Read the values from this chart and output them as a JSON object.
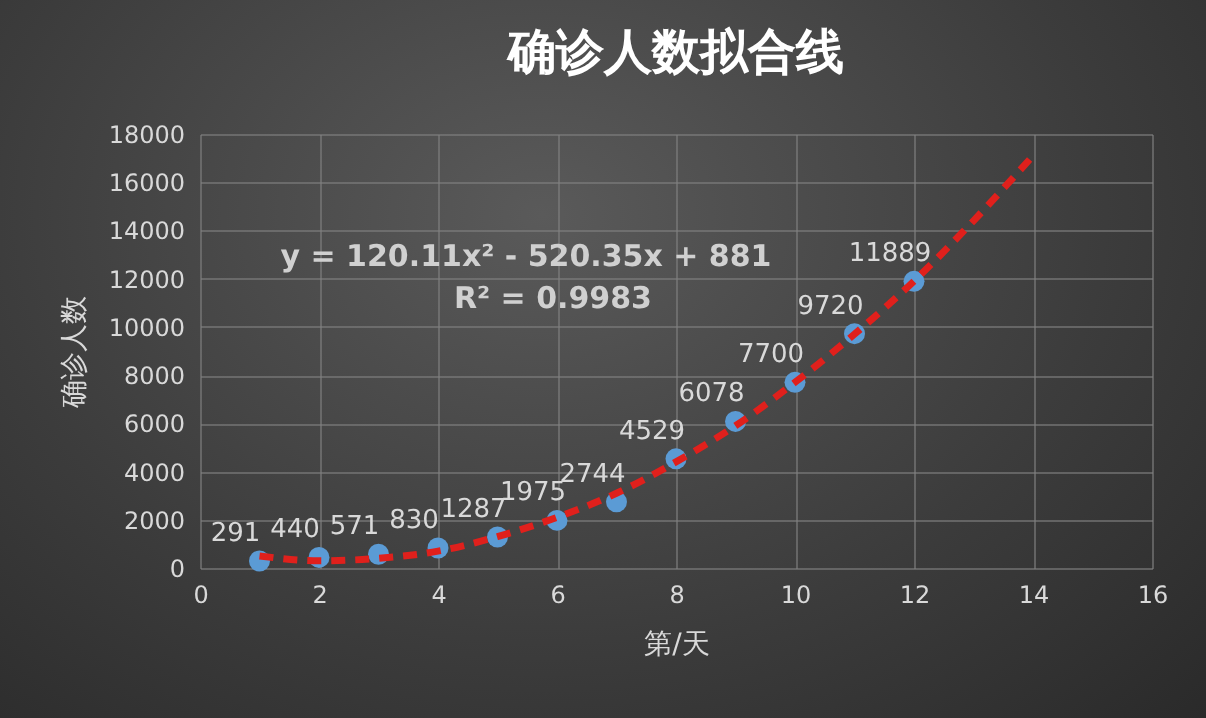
{
  "chart_data": {
    "type": "scatter",
    "title": "确诊人数拟合线",
    "xlabel": "第/天",
    "ylabel": "确诊人数",
    "x": [
      1,
      2,
      3,
      4,
      5,
      6,
      7,
      8,
      9,
      10,
      11,
      12
    ],
    "series": [
      {
        "color": "#5b9bd5",
        "marker": "circle",
        "values": [
          291,
          440,
          571,
          830,
          1287,
          1975,
          2744,
          4529,
          6078,
          7700,
          9720,
          11889
        ],
        "value_labels": [
          "291",
          "440",
          "571",
          "830",
          "1287",
          "1975",
          "2744",
          "4529",
          "6078",
          "7700",
          "9720",
          "11889"
        ]
      },
      {
        "type": "line",
        "color": "#e0201c",
        "line_style": "dashed",
        "x": [
          1,
          2,
          3,
          4,
          5,
          6,
          7,
          8,
          9,
          10,
          11,
          12,
          13,
          14
        ],
        "values": [
          500,
          300,
          400,
          700,
          1300,
          2100,
          3100,
          4400,
          5900,
          7700,
          9700,
          11900,
          14400,
          17100
        ]
      }
    ],
    "annotations": [
      "y = 120.11x² - 520.35x + 881",
      "R² = 0.9983"
    ],
    "xlim": [
      0,
      16
    ],
    "xticks": [
      0,
      2,
      4,
      6,
      8,
      10,
      12,
      14,
      16
    ],
    "ylim": [
      0,
      18000
    ],
    "yticks": [
      0,
      2000,
      4000,
      6000,
      8000,
      10000,
      12000,
      14000,
      16000,
      18000
    ],
    "grid": true
  }
}
